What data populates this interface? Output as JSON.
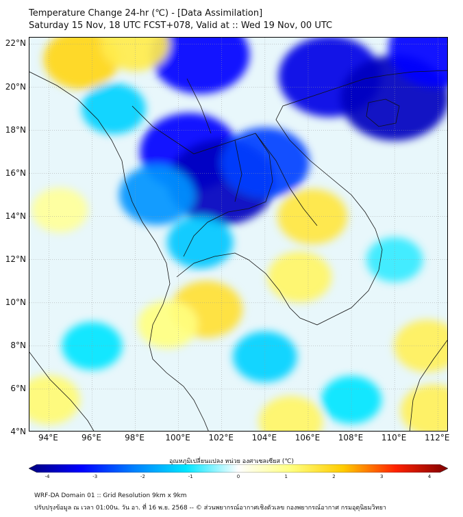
{
  "title_line1": "Temperature Change 24-hr (℃) - [Data Assimilation]",
  "title_line2": "Saturday 15 Nov, 18 UTC FCST+078, Valid at :: Wed 19 Nov, 00 UTC",
  "lat_labels": [
    "22°N",
    "20°N",
    "18°N",
    "16°N",
    "14°N",
    "12°N",
    "10°N",
    "8°N",
    "6°N",
    "4°N"
  ],
  "lon_labels": [
    "94°E",
    "96°E",
    "98°E",
    "100°E",
    "102°E",
    "104°E",
    "106°E",
    "108°E",
    "110°E",
    "112°E"
  ],
  "colorbar": {
    "title": "อุณหภูมิเปลี่ยนแปลง หน่วย องศาเซลเซียส (℃)",
    "min": -4,
    "max": 4,
    "ticks": [
      "-4",
      "-3",
      "-2",
      "-1",
      "0",
      "1",
      "2",
      "3",
      "4"
    ],
    "colors": [
      "#00007f",
      "#0000ff",
      "#0080ff",
      "#00e5ff",
      "#ffffff",
      "#ffff80",
      "#ffcc00",
      "#ff2200",
      "#7f0000"
    ]
  },
  "map": {
    "lat_range": [
      4,
      22.3
    ],
    "lon_range": [
      93.1,
      112.5
    ],
    "features": [
      {
        "lat": 21.5,
        "lon": 101,
        "delta": -3.0
      },
      {
        "lat": 20.5,
        "lon": 107,
        "delta": -3.2
      },
      {
        "lat": 19.5,
        "lon": 110,
        "delta": -3.5
      },
      {
        "lat": 21.8,
        "lon": 112,
        "delta": -3.0
      },
      {
        "lat": 17.0,
        "lon": 100.5,
        "delta": -3.0
      },
      {
        "lat": 15.6,
        "lon": 102,
        "delta": -3.5
      },
      {
        "lat": 16.5,
        "lon": 104,
        "delta": -2.5
      },
      {
        "lat": 15.0,
        "lon": 99,
        "delta": -1.8
      },
      {
        "lat": 19.0,
        "lon": 97,
        "delta": -1.2
      },
      {
        "lat": 12.8,
        "lon": 101,
        "delta": -1.3
      },
      {
        "lat": 7.5,
        "lon": 104,
        "delta": -1.2
      },
      {
        "lat": 8.0,
        "lon": 96,
        "delta": -1.0
      },
      {
        "lat": 5.5,
        "lon": 108,
        "delta": -1.0
      },
      {
        "lat": 12.0,
        "lon": 110,
        "delta": -0.8
      },
      {
        "lat": 21.3,
        "lon": 95.5,
        "delta": 1.8
      },
      {
        "lat": 22.0,
        "lon": 98,
        "delta": 1.4
      },
      {
        "lat": 14.0,
        "lon": 106.2,
        "delta": 1.5
      },
      {
        "lat": 11.2,
        "lon": 105.6,
        "delta": 1.2
      },
      {
        "lat": 9.7,
        "lon": 101.3,
        "delta": 1.6
      },
      {
        "lat": 9.0,
        "lon": 99.5,
        "delta": 1.0
      },
      {
        "lat": 14.3,
        "lon": 94.5,
        "delta": 0.8
      },
      {
        "lat": 8.0,
        "lon": 111.5,
        "delta": 1.3
      },
      {
        "lat": 5.0,
        "lon": 111.8,
        "delta": 1.3
      },
      {
        "lat": 4.5,
        "lon": 105.2,
        "delta": 1.2
      },
      {
        "lat": 5.5,
        "lon": 94.0,
        "delta": 1.1
      }
    ]
  },
  "footer_line1": "WRF-DA Domain 01 :: Grid Resolution 9km x 9km",
  "footer_line2": "ปรับปรุงข้อมูล ณ เวลา 01:00น. วัน อา. ที่ 16 พ.ย. 2568 -- © ส่วนพยากรณ์อากาศเชิงตัวเลข กองพยากรณ์อากาศ กรมอุตุนิยมวิทยา"
}
